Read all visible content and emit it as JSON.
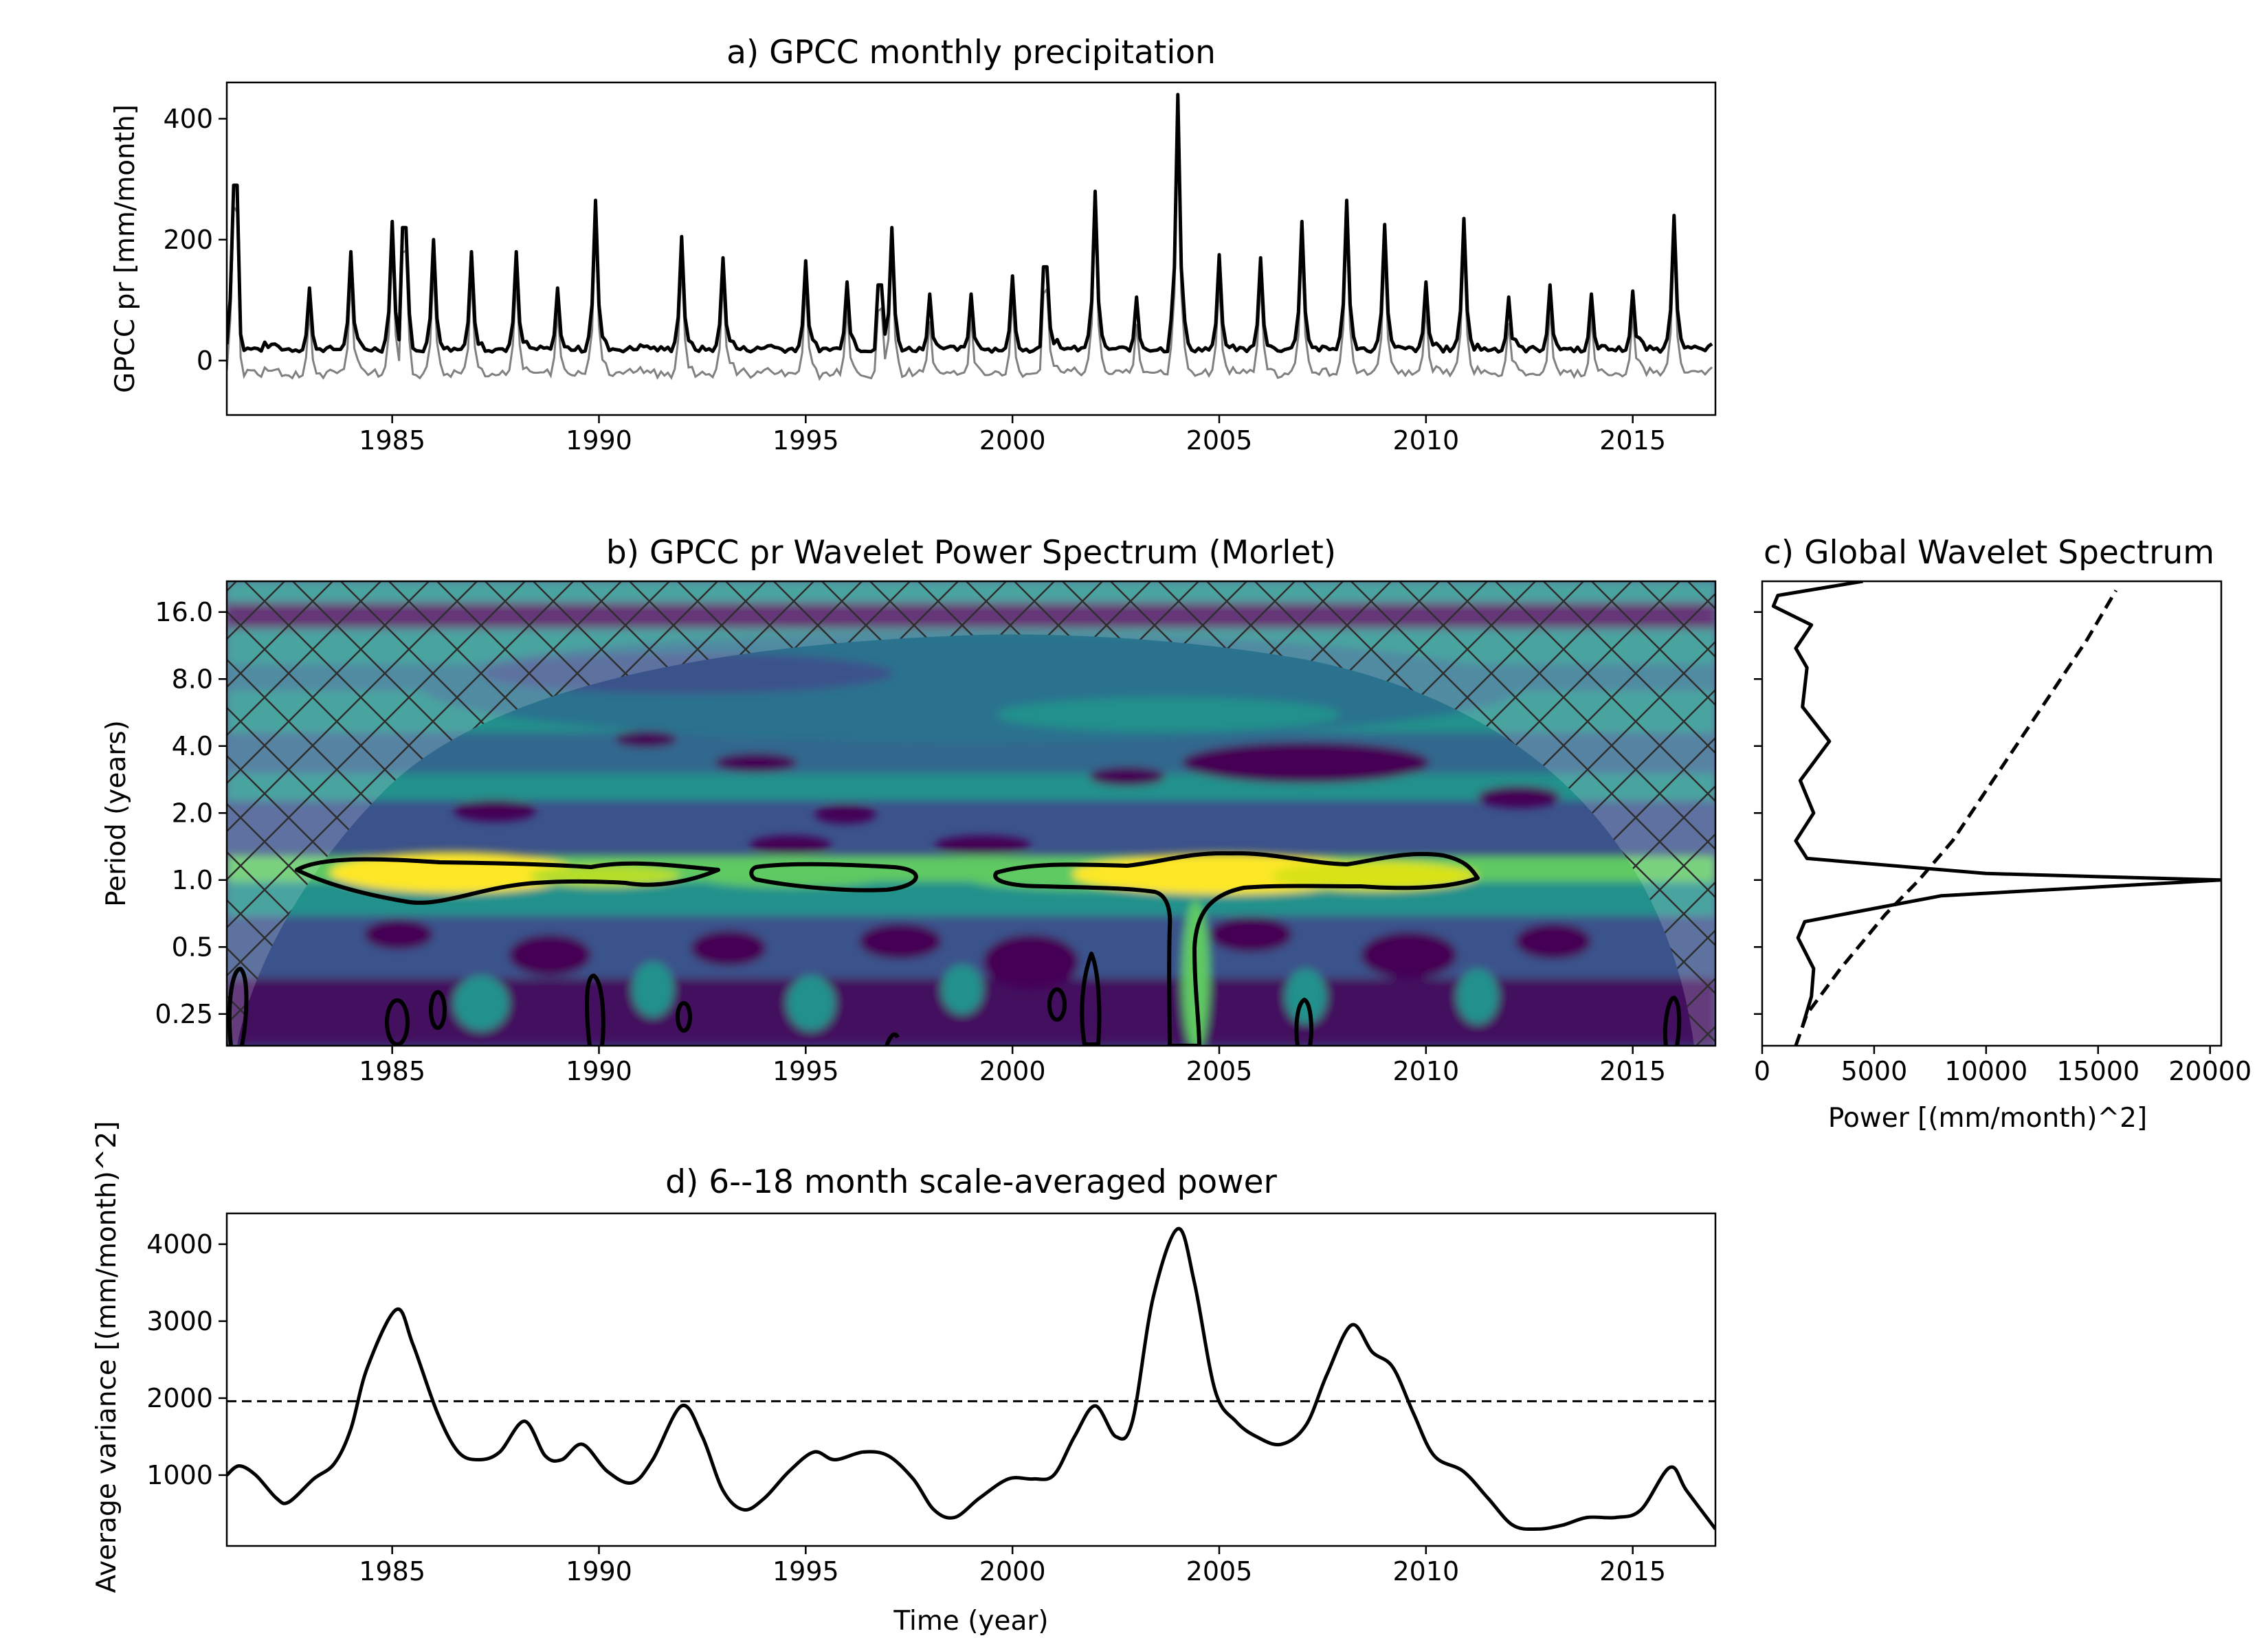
{
  "colors": {
    "line": "#000000",
    "anomaly": "#808080",
    "viridis": [
      "#440154",
      "#3b528b",
      "#21918c",
      "#5ec962",
      "#fde725"
    ]
  },
  "chart_data": [
    {
      "id": "a",
      "type": "line",
      "title": "a) GPCC monthly precipitation",
      "ylabel": "GPCC pr [mm/month]",
      "xlabel": "",
      "xlim": [
        1981.0,
        2017.0
      ],
      "ylim": [
        -90,
        460
      ],
      "xticks": [
        1985,
        1990,
        1995,
        2000,
        2005,
        2010,
        2015
      ],
      "yticks": [
        0,
        200,
        400
      ],
      "series": [
        {
          "role": "precipitation",
          "color": "#000000",
          "peaks": [
            [
              1981.2,
              290
            ],
            [
              1983.0,
              120
            ],
            [
              1984.0,
              180
            ],
            [
              1985.0,
              230
            ],
            [
              1985.3,
              220
            ],
            [
              1986.0,
              200
            ],
            [
              1986.9,
              180
            ],
            [
              1988.0,
              180
            ],
            [
              1989.0,
              120
            ],
            [
              1989.9,
              265
            ],
            [
              1992.0,
              205
            ],
            [
              1993.0,
              170
            ],
            [
              1995.0,
              165
            ],
            [
              1996.0,
              130
            ],
            [
              1996.8,
              125
            ],
            [
              1997.1,
              220
            ],
            [
              1998.0,
              110
            ],
            [
              1999.0,
              110
            ],
            [
              2000.0,
              140
            ],
            [
              2000.8,
              155
            ],
            [
              2002.0,
              280
            ],
            [
              2003.0,
              105
            ],
            [
              2004.0,
              440
            ],
            [
              2005.0,
              175
            ],
            [
              2006.0,
              170
            ],
            [
              2007.0,
              230
            ],
            [
              2008.1,
              265
            ],
            [
              2009.0,
              225
            ],
            [
              2010.0,
              130
            ],
            [
              2010.9,
              235
            ],
            [
              2012.0,
              105
            ],
            [
              2013.0,
              125
            ],
            [
              2014.0,
              110
            ],
            [
              2015.0,
              115
            ],
            [
              2016.0,
              240
            ]
          ]
        },
        {
          "role": "anomaly",
          "color": "#808080",
          "offset": -35
        }
      ]
    },
    {
      "id": "b",
      "type": "heatmap",
      "title": "b) GPCC pr Wavelet Power Spectrum (Morlet)",
      "ylabel": "Period (years)",
      "xlim": [
        1981.0,
        2017.0
      ],
      "ylim": [
        0.18,
        22
      ],
      "yscale": "log2",
      "yticks": [
        16.0,
        8.0,
        4.0,
        2.0,
        1.0,
        0.5,
        0.25
      ],
      "ytick_labels": [
        "16.0",
        "8.0",
        "4.0",
        "2.0",
        "1.0",
        "0.5",
        "0.25"
      ],
      "xticks": [
        1985,
        1990,
        1995,
        2000,
        2005,
        2010,
        2015
      ],
      "colormap": "viridis",
      "significance_contours_period_1": [
        [
          1982.6,
          1993.2
        ],
        [
          1994.2,
          1998.4
        ],
        [
          1999.6,
          2011.3
        ]
      ],
      "cone_of_influence": "cross-hatched"
    },
    {
      "id": "c",
      "type": "line",
      "title": "c) Global Wavelet Spectrum",
      "xlabel": "Power [(mm/month)^2]",
      "xlim": [
        0,
        20500
      ],
      "xticks": [
        0,
        5000,
        10000,
        15000,
        20000
      ],
      "series": [
        {
          "role": "global-spectrum",
          "style": "solid",
          "points": [
            [
              1800,
              0.22
            ],
            [
              2200,
              0.3
            ],
            [
              2300,
              0.4
            ],
            [
              1600,
              0.55
            ],
            [
              1900,
              0.65
            ],
            [
              8000,
              0.85
            ],
            [
              20500,
              1.0
            ],
            [
              10000,
              1.07
            ],
            [
              2000,
              1.25
            ],
            [
              1500,
              1.5
            ],
            [
              2300,
              2.0
            ],
            [
              1700,
              2.8
            ],
            [
              3000,
              4.2
            ],
            [
              1800,
              6
            ],
            [
              2000,
              9
            ],
            [
              1500,
              11
            ],
            [
              2200,
              14
            ],
            [
              500,
              17
            ],
            [
              700,
              19
            ],
            [
              4500,
              22
            ]
          ]
        },
        {
          "role": "significance",
          "style": "dashed",
          "points": [
            [
              1500,
              0.18
            ],
            [
              2000,
              0.25
            ],
            [
              3500,
              0.4
            ],
            [
              5500,
              0.7
            ],
            [
              7000,
              1.0
            ],
            [
              8500,
              1.5
            ],
            [
              10500,
              3
            ],
            [
              12500,
              6
            ],
            [
              14500,
              12
            ],
            [
              15800,
              20
            ]
          ]
        }
      ]
    },
    {
      "id": "d",
      "type": "line",
      "title": "d) 6--18 month scale-averaged power",
      "xlabel": "Time (year)",
      "ylabel": "Average variance [(mm/month)^2]",
      "xlim": [
        1981.0,
        2017.0
      ],
      "ylim": [
        80,
        4400
      ],
      "xticks": [
        1985,
        1990,
        1995,
        2000,
        2005,
        2010,
        2015
      ],
      "yticks": [
        1000,
        2000,
        3000,
        4000
      ],
      "significance_level": 1960,
      "series": [
        {
          "role": "scale-averaged-power",
          "color": "#000000",
          "points": [
            [
              1981.0,
              1000
            ],
            [
              1981.3,
              1120
            ],
            [
              1981.7,
              1000
            ],
            [
              1982.2,
              700
            ],
            [
              1982.5,
              650
            ],
            [
              1983.1,
              950
            ],
            [
              1983.6,
              1150
            ],
            [
              1984.0,
              1600
            ],
            [
              1984.4,
              2400
            ],
            [
              1985.1,
              3150
            ],
            [
              1985.5,
              2700
            ],
            [
              1986.1,
              1800
            ],
            [
              1986.6,
              1300
            ],
            [
              1987.1,
              1200
            ],
            [
              1987.6,
              1300
            ],
            [
              1988.2,
              1700
            ],
            [
              1988.7,
              1250
            ],
            [
              1989.1,
              1200
            ],
            [
              1989.6,
              1400
            ],
            [
              1990.2,
              1050
            ],
            [
              1990.8,
              900
            ],
            [
              1991.3,
              1200
            ],
            [
              1992.0,
              1900
            ],
            [
              1992.5,
              1500
            ],
            [
              1993.0,
              800
            ],
            [
              1993.5,
              550
            ],
            [
              1994.0,
              700
            ],
            [
              1994.6,
              1050
            ],
            [
              1995.2,
              1300
            ],
            [
              1995.7,
              1200
            ],
            [
              1996.4,
              1300
            ],
            [
              1997.0,
              1250
            ],
            [
              1997.6,
              950
            ],
            [
              1998.1,
              550
            ],
            [
              1998.6,
              450
            ],
            [
              1999.2,
              700
            ],
            [
              1999.9,
              950
            ],
            [
              2000.5,
              950
            ],
            [
              2001.0,
              1000
            ],
            [
              2001.5,
              1500
            ],
            [
              2002.0,
              1900
            ],
            [
              2002.5,
              1500
            ],
            [
              2002.9,
              1700
            ],
            [
              2003.4,
              3300
            ],
            [
              2004.0,
              4200
            ],
            [
              2004.4,
              3500
            ],
            [
              2004.9,
              2100
            ],
            [
              2005.4,
              1700
            ],
            [
              2005.9,
              1500
            ],
            [
              2006.5,
              1400
            ],
            [
              2007.1,
              1650
            ],
            [
              2007.6,
              2300
            ],
            [
              2008.2,
              2950
            ],
            [
              2008.7,
              2600
            ],
            [
              2009.2,
              2400
            ],
            [
              2009.7,
              1800
            ],
            [
              2010.2,
              1250
            ],
            [
              2010.9,
              1050
            ],
            [
              2011.5,
              700
            ],
            [
              2012.1,
              350
            ],
            [
              2012.7,
              300
            ],
            [
              2013.3,
              350
            ],
            [
              2013.9,
              450
            ],
            [
              2014.6,
              450
            ],
            [
              2015.2,
              550
            ],
            [
              2015.9,
              1100
            ],
            [
              2016.3,
              800
            ],
            [
              2017.0,
              300
            ]
          ]
        }
      ]
    }
  ]
}
